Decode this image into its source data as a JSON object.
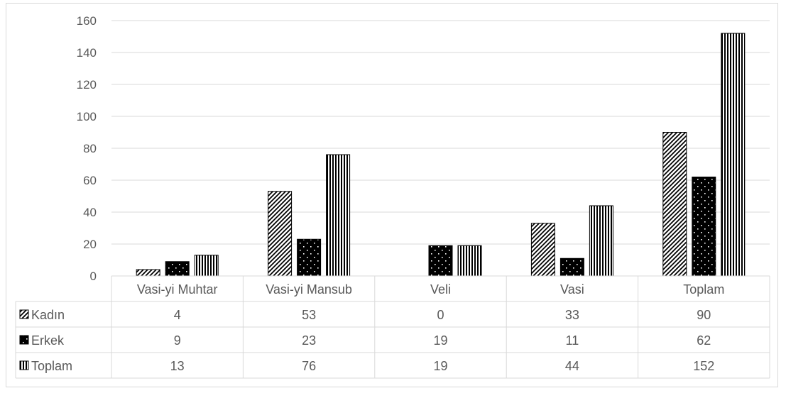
{
  "chart_data": {
    "type": "bar",
    "categories": [
      "Vasi-yi Muhtar",
      "Vasi-yi Mansub",
      "Veli",
      "Vasi",
      "Toplam"
    ],
    "series": [
      {
        "name": "Kadın",
        "values": [
          4,
          53,
          0,
          33,
          90
        ],
        "pattern": "diagonal-hatch"
      },
      {
        "name": "Erkek",
        "values": [
          9,
          23,
          19,
          11,
          62
        ],
        "pattern": "black-dotted"
      },
      {
        "name": "Toplam",
        "values": [
          13,
          76,
          19,
          44,
          152
        ],
        "pattern": "vertical-stripes"
      }
    ],
    "ylim": [
      0,
      160
    ],
    "yticks": [
      0,
      20,
      40,
      60,
      80,
      100,
      120,
      140,
      160
    ],
    "grid": true,
    "legend": "data-table"
  },
  "colors": {
    "bar_edge": "#000000",
    "grid": "#d9d9d9",
    "text": "#595959"
  }
}
